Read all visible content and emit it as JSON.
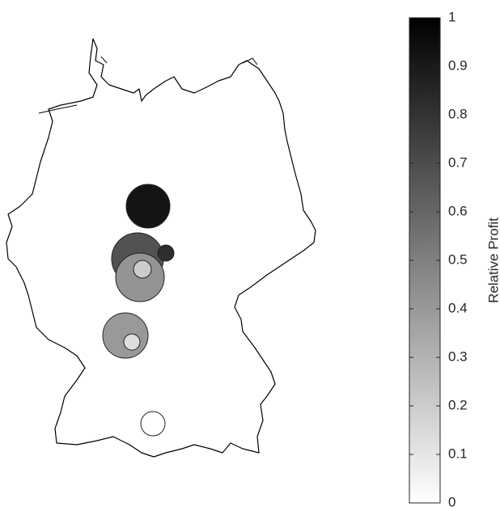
{
  "chart_data": {
    "type": "bubble-map",
    "values": [
      0.92,
      0.68,
      0.82,
      0.42,
      0.2,
      0.4,
      0.13,
      0.0
    ],
    "colorbar": {
      "label": "Relative Profit",
      "clim": [
        0,
        1
      ],
      "ticks": [
        0,
        0.1,
        0.2,
        0.3,
        0.4,
        0.5,
        0.6,
        0.7,
        0.8,
        0.9,
        1
      ]
    }
  }
}
